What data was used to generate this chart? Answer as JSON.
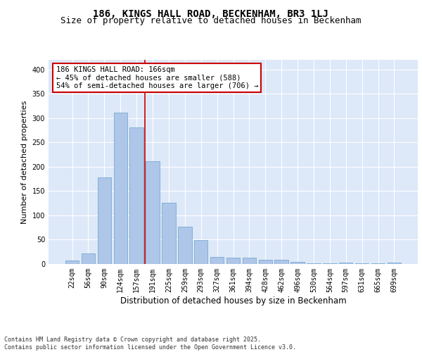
{
  "title": "186, KINGS HALL ROAD, BECKENHAM, BR3 1LJ",
  "subtitle": "Size of property relative to detached houses in Beckenham",
  "xlabel": "Distribution of detached houses by size in Beckenham",
  "ylabel": "Number of detached properties",
  "categories": [
    "22sqm",
    "56sqm",
    "90sqm",
    "124sqm",
    "157sqm",
    "191sqm",
    "225sqm",
    "259sqm",
    "293sqm",
    "327sqm",
    "361sqm",
    "394sqm",
    "428sqm",
    "462sqm",
    "496sqm",
    "530sqm",
    "564sqm",
    "597sqm",
    "631sqm",
    "665sqm",
    "699sqm"
  ],
  "values": [
    7,
    22,
    178,
    311,
    281,
    212,
    126,
    77,
    49,
    15,
    13,
    13,
    8,
    8,
    5,
    1,
    1,
    3,
    1,
    1,
    3
  ],
  "bar_color": "#aec6e8",
  "bar_edge_color": "#7aaad0",
  "highlight_line_index": 4,
  "highlight_line_color": "#cc0000",
  "annotation_text": "186 KINGS HALL ROAD: 166sqm\n← 45% of detached houses are smaller (588)\n54% of semi-detached houses are larger (706) →",
  "annotation_box_color": "#ffffff",
  "annotation_box_edge": "#cc0000",
  "background_color": "#dde8f8",
  "grid_color": "#ffffff",
  "ylim": [
    0,
    420
  ],
  "yticks": [
    0,
    50,
    100,
    150,
    200,
    250,
    300,
    350,
    400
  ],
  "footer": "Contains HM Land Registry data © Crown copyright and database right 2025.\nContains public sector information licensed under the Open Government Licence v3.0.",
  "title_fontsize": 10,
  "subtitle_fontsize": 9,
  "tick_fontsize": 7,
  "ylabel_fontsize": 8,
  "xlabel_fontsize": 8.5,
  "annotation_fontsize": 7.5,
  "footer_fontsize": 6
}
